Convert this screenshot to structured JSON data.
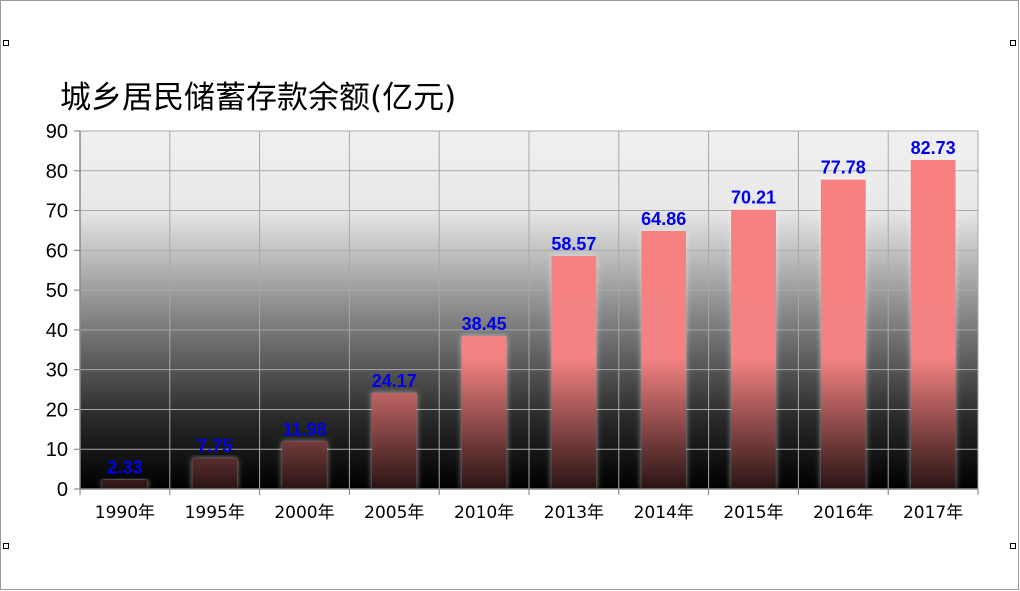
{
  "chart_data": {
    "type": "bar",
    "title": "城乡居民储蓄存款余额(亿元)",
    "categories": [
      "1990年",
      "1995年",
      "2000年",
      "2005年",
      "2010年",
      "2013年",
      "2014年",
      "2015年",
      "2016年",
      "2017年"
    ],
    "values": [
      2.33,
      7.75,
      11.98,
      24.17,
      38.45,
      58.57,
      64.86,
      70.21,
      77.78,
      82.73
    ],
    "data_labels": [
      "2.33",
      "7.75",
      "11.98",
      "24.17",
      "38.45",
      "58.57",
      "64.86",
      "70.21",
      "77.78",
      "82.73"
    ],
    "y_ticks": [
      "0",
      "10",
      "20",
      "30",
      "40",
      "50",
      "60",
      "70",
      "80",
      "90"
    ],
    "ylim": [
      0,
      90
    ],
    "grid": true,
    "legend": "none",
    "colors": {
      "bar": "#f88080",
      "label": "#0000ee",
      "grid": "#a8a8a8",
      "plot_bg_top": "#f0f0f0",
      "plot_bg_bottom": "#000000"
    }
  }
}
